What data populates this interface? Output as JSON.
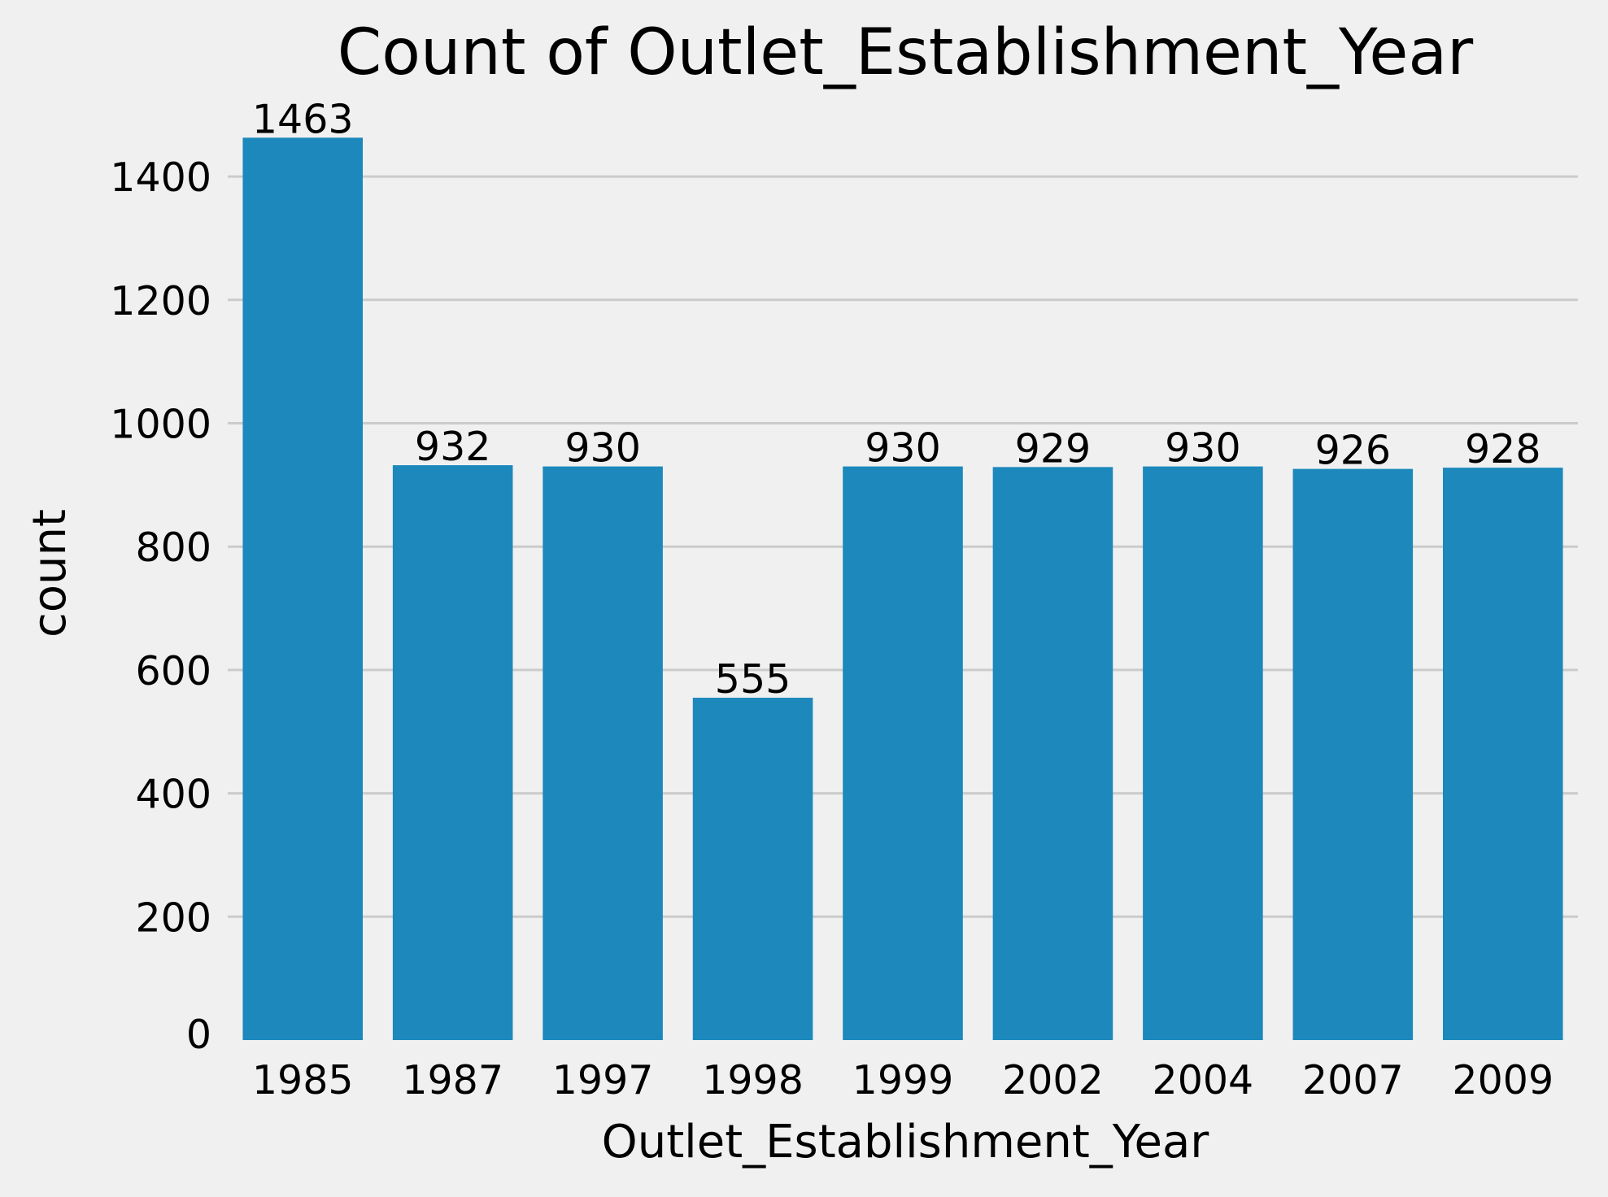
{
  "colors": {
    "background": "#f0f0f0",
    "bar": "#1c88bc",
    "grid": "#cbcbcb",
    "text": "#000000"
  },
  "chart_data": {
    "type": "bar",
    "title": "Count of Outlet_Establishment_Year",
    "xlabel": "Outlet_Establishment_Year",
    "ylabel": "count",
    "categories": [
      "1985",
      "1987",
      "1997",
      "1998",
      "1999",
      "2002",
      "2004",
      "2007",
      "2009"
    ],
    "values": [
      1463,
      932,
      930,
      555,
      930,
      929,
      930,
      926,
      928
    ],
    "data_labels": [
      "1463",
      "932",
      "930",
      "555",
      "930",
      "929",
      "930",
      "926",
      "928"
    ],
    "yticks": [
      0,
      200,
      400,
      600,
      800,
      1000,
      1200,
      1400
    ],
    "ylim": [
      0,
      1536
    ],
    "grid": "horizontal",
    "legend": "none"
  }
}
